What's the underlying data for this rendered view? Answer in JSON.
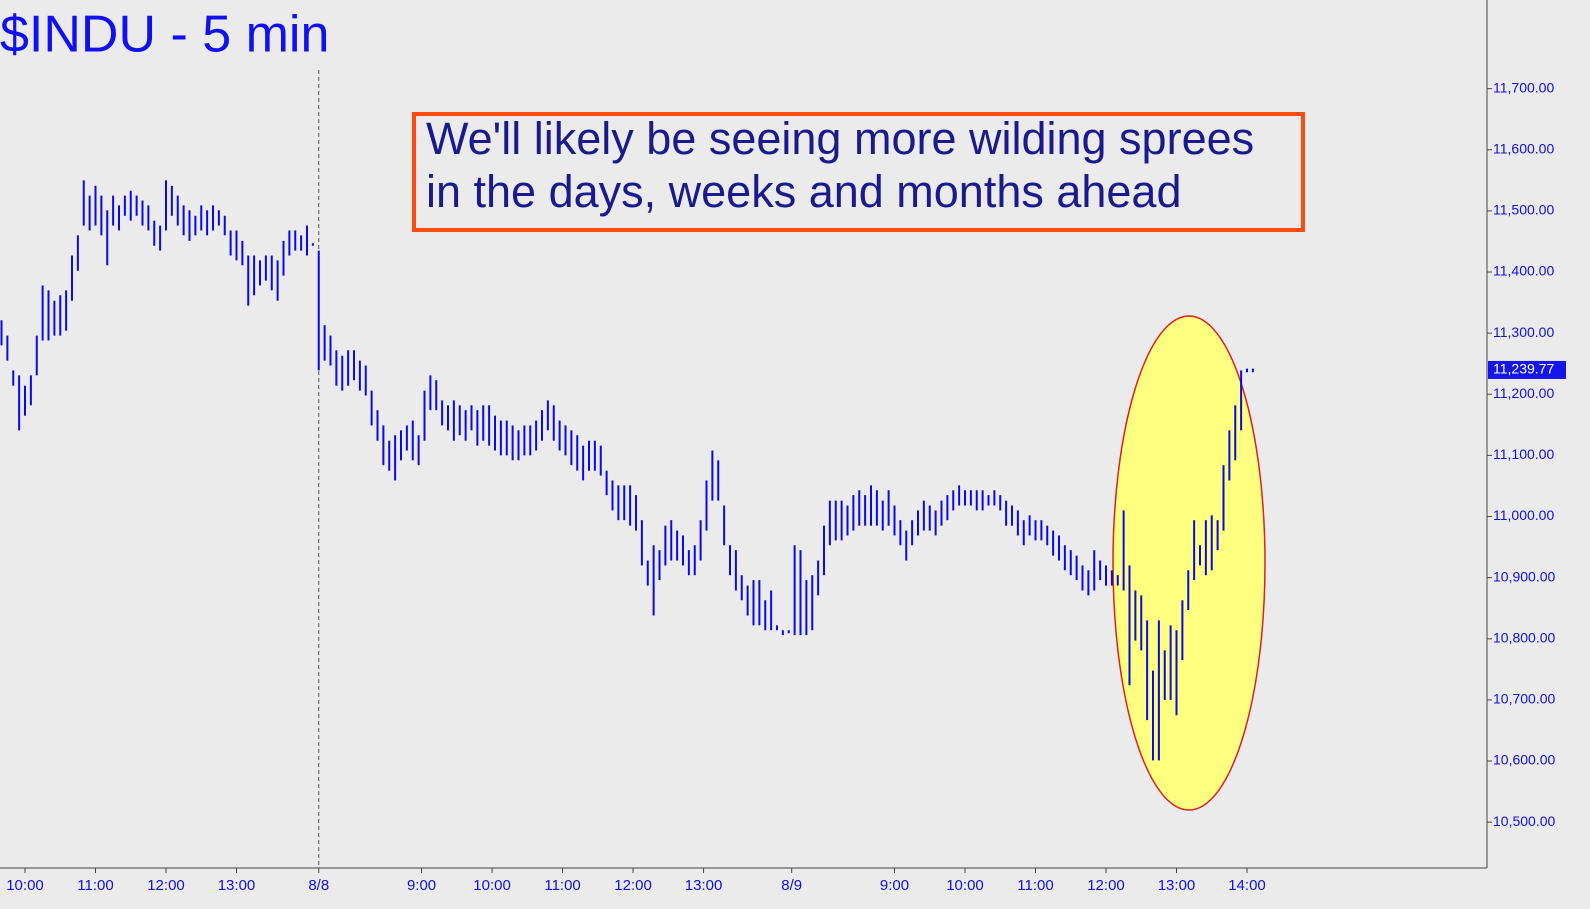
{
  "chart_data": {
    "type": "ohlc",
    "title": "$INDU - 5 min",
    "annotation": [
      "We'll likely be seeing more wilding sprees",
      "in the days, weeks and months ahead"
    ],
    "series": [
      {
        "name": "$INDU",
        "color": "#0a0ae6",
        "high": [
          11321,
          11296,
          11239,
          11231,
          11214,
          11231,
          11296,
          11378,
          11370,
          11353,
          11362,
          11370,
          11427,
          11460,
          11550,
          11525,
          11541,
          11525,
          11501,
          11525,
          11509,
          11525,
          11533,
          11525,
          11517,
          11509,
          11484,
          11476,
          11550,
          11541,
          11525,
          11509,
          11501,
          11492,
          11509,
          11501,
          11509,
          11501,
          11492,
          11468,
          11468,
          11451,
          11427,
          11427,
          11419,
          11427,
          11427,
          11419,
          11451,
          11468,
          11468,
          11460,
          11476,
          11447,
          11435,
          11313,
          11296,
          11272,
          11263,
          11272,
          11272,
          11255,
          11247,
          11206,
          11174,
          11149,
          11124,
          11133,
          11141,
          11149,
          11157,
          11133,
          11206,
          11231,
          11223,
          11190,
          11182,
          11190,
          11182,
          11174,
          11182,
          11174,
          11182,
          11182,
          11165,
          11157,
          11157,
          11149,
          11141,
          11149,
          11149,
          11157,
          11174,
          11190,
          11182,
          11157,
          11149,
          11141,
          11133,
          11116,
          11124,
          11124,
          11116,
          11075,
          11059,
          11051,
          11051,
          11051,
          11035,
          10994,
          10928,
          10953,
          10945,
          10985,
          10994,
          10977,
          10969,
          10945,
          10953,
          10994,
          11059,
          11108,
          11092,
          11018,
          10953,
          10945,
          10904,
          10887,
          10896,
          10896,
          10863,
          10879,
          10822,
          10814,
          10814,
          10953,
          10945,
          10896,
          10904,
          10928,
          10985,
          11026,
          11026,
          11026,
          11018,
          11035,
          11043,
          11035,
          11051,
          11043,
          11026,
          11043,
          11018,
          10994,
          10977,
          10994,
          11010,
          11026,
          11018,
          11010,
          11026,
          11035,
          11043,
          11051,
          11043,
          11043,
          11043,
          11043,
          11035,
          11043,
          11035,
          11026,
          11018,
          11010,
          10994,
          11002,
          10994,
          10994,
          10985,
          10977,
          10969,
          10953,
          10945,
          10936,
          10920,
          10912,
          10945,
          10928,
          10920,
          10912,
          10904,
          11010,
          10920,
          10879,
          10871,
          10830,
          10748,
          10830,
          10781,
          10822,
          10814,
          10863,
          10912,
          10994,
          10953,
          10994,
          11002,
          10994,
          11084,
          11141,
          11182,
          11239,
          11242,
          11242
        ],
        "low": [
          11280,
          11255,
          11214,
          11141,
          11165,
          11182,
          11231,
          11288,
          11288,
          11296,
          11296,
          11304,
          11353,
          11402,
          11476,
          11468,
          11476,
          11460,
          11411,
          11476,
          11468,
          11492,
          11484,
          11492,
          11476,
          11468,
          11443,
          11435,
          11468,
          11492,
          11476,
          11460,
          11451,
          11460,
          11468,
          11460,
          11468,
          11476,
          11460,
          11427,
          11419,
          11411,
          11345,
          11362,
          11378,
          11386,
          11370,
          11353,
          11394,
          11427,
          11435,
          11435,
          11427,
          11443,
          11239,
          11255,
          11247,
          11214,
          11206,
          11214,
          11223,
          11206,
          11198,
          11149,
          11124,
          11084,
          11075,
          11059,
          11092,
          11108,
          11092,
          11084,
          11124,
          11174,
          11174,
          11149,
          11141,
          11124,
          11133,
          11124,
          11141,
          11116,
          11124,
          11116,
          11108,
          11100,
          11100,
          11092,
          11092,
          11100,
          11100,
          11108,
          11124,
          11141,
          11124,
          11108,
          11100,
          11084,
          11075,
          11059,
          11075,
          11075,
          11067,
          11035,
          11010,
          10994,
          10994,
          10985,
          10977,
          10920,
          10887,
          10838,
          10896,
          10920,
          10928,
          10928,
          10920,
          10904,
          10904,
          10928,
          10977,
          11026,
          11026,
          10953,
          10904,
          10879,
          10863,
          10838,
          10822,
          10822,
          10814,
          10814,
          10814,
          10806,
          10809,
          10806,
          10806,
          10806,
          10814,
          10871,
          10904,
          10953,
          10961,
          10961,
          10969,
          10977,
          10985,
          10985,
          10985,
          10985,
          10977,
          10985,
          10969,
          10953,
          10928,
          10953,
          10969,
          10977,
          10977,
          10969,
          10985,
          10994,
          11010,
          11018,
          11018,
          11018,
          11010,
          11010,
          11018,
          11018,
          11010,
          10985,
          10985,
          10969,
          10953,
          10969,
          10961,
          10961,
          10953,
          10936,
          10928,
          10912,
          10904,
          10896,
          10879,
          10871,
          10879,
          10896,
          10887,
          10887,
          10887,
          10879,
          10724,
          10797,
          10781,
          10667,
          10601,
          10601,
          10700,
          10700,
          10675,
          10765,
          10847,
          10896,
          10920,
          10904,
          10912,
          10945,
          10977,
          11059,
          11092,
          11141,
          11236,
          11236
        ]
      }
    ],
    "xticks": [
      {
        "value": 4,
        "label": "10:00"
      },
      {
        "value": 16,
        "label": "11:00"
      },
      {
        "value": 28,
        "label": "12:00"
      },
      {
        "value": 40,
        "label": "13:00"
      },
      {
        "value": 54,
        "label": "8/8"
      },
      {
        "value": 71.5,
        "label": "9:00"
      },
      {
        "value": 83.5,
        "label": "10:00"
      },
      {
        "value": 95.5,
        "label": "11:00"
      },
      {
        "value": 107.5,
        "label": "12:00"
      },
      {
        "value": 119.5,
        "label": "13:00"
      },
      {
        "value": 134.5,
        "label": "8/9"
      },
      {
        "value": 152,
        "label": "9:00"
      },
      {
        "value": 164,
        "label": "10:00"
      },
      {
        "value": 176,
        "label": "11:00"
      },
      {
        "value": 188,
        "label": "12:00"
      },
      {
        "value": 200,
        "label": "13:00"
      },
      {
        "value": 212,
        "label": "14:00"
      }
    ],
    "ylim": [
      10425,
      11845
    ],
    "yticks": [
      {
        "value": 10500,
        "label": "10,500.00"
      },
      {
        "value": 10600,
        "label": "10,600.00"
      },
      {
        "value": 10700,
        "label": "10,700.00"
      },
      {
        "value": 10800,
        "label": "10,800.00"
      },
      {
        "value": 10900,
        "label": "10,900.00"
      },
      {
        "value": 11000,
        "label": "11,000.00"
      },
      {
        "value": 11100,
        "label": "11,100.00"
      },
      {
        "value": 11200,
        "label": "11,200.00"
      },
      {
        "value": 11300,
        "label": "11,300.00"
      },
      {
        "value": 11400,
        "label": "11,400.00"
      },
      {
        "value": 11500,
        "label": "11,500.00"
      },
      {
        "value": 11600,
        "label": "11,600.00"
      },
      {
        "value": 11700,
        "label": "11,700.00"
      }
    ],
    "last_price": {
      "value": 11239.77,
      "label": "11,239.77"
    }
  }
}
